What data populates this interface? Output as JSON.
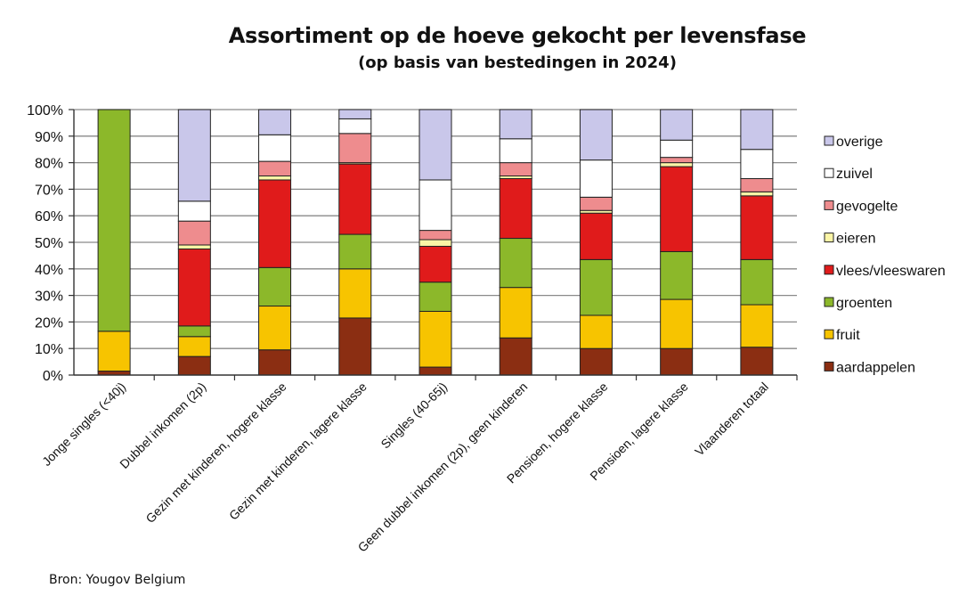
{
  "chart_data": {
    "type": "bar",
    "stacked": true,
    "title": "Assortiment op de hoeve gekocht per levensfase",
    "subtitle": "(op basis van bestedingen in 2024)",
    "ylim": [
      0,
      100
    ],
    "yticks": [
      "0%",
      "10%",
      "20%",
      "30%",
      "40%",
      "50%",
      "60%",
      "70%",
      "80%",
      "90%",
      "100%"
    ],
    "grid": true,
    "legend_position": "right",
    "categories": [
      "Jonge singles (<40j)",
      "Dubbel inkomen (2p)",
      "Gezin met kinderen, hogere klasse",
      "Gezin met kinderen, lagere klasse",
      "Singles (40-65j)",
      "Geen dubbel inkomen (2p), geen kinderen",
      "Pensioen, hogere klasse",
      "Pensioen, lagere klasse",
      "Vlaanderen totaal"
    ],
    "series": [
      {
        "name": "aardappelen",
        "color": "#8b2e12",
        "values": [
          1.5,
          7,
          9.5,
          21.5,
          3,
          14,
          10,
          10,
          10.5
        ]
      },
      {
        "name": "fruit",
        "color": "#f7c400",
        "values": [
          15,
          7.5,
          16.5,
          18.5,
          21,
          19,
          12.5,
          18.5,
          16
        ]
      },
      {
        "name": "groenten",
        "color": "#8cb82a",
        "values": [
          83.5,
          4,
          14.5,
          13,
          11,
          18.5,
          21,
          18,
          17
        ]
      },
      {
        "name": "vlees/vleeswaren",
        "color": "#e01b1b",
        "values": [
          0,
          29,
          33,
          26.5,
          13.5,
          22.5,
          17.5,
          32,
          24
        ]
      },
      {
        "name": "eieren",
        "color": "#fbf5a6",
        "values": [
          0,
          1.5,
          1.5,
          0.5,
          2.5,
          1,
          1,
          1.5,
          1.5
        ]
      },
      {
        "name": "gevogelte",
        "color": "#ee8c8e",
        "values": [
          0,
          9,
          5.5,
          11,
          3.5,
          5,
          5,
          2,
          5
        ]
      },
      {
        "name": "zuivel",
        "color": "#ffffff",
        "values": [
          0,
          7.5,
          10,
          5.5,
          19,
          9,
          14,
          6.5,
          11
        ]
      },
      {
        "name": "overige",
        "color": "#c9c7ea",
        "values": [
          0,
          34.5,
          9.5,
          3.5,
          26.5,
          11,
          19,
          11.5,
          15
        ]
      }
    ]
  },
  "footer": {
    "source": "Bron: Yougov Belgium"
  }
}
